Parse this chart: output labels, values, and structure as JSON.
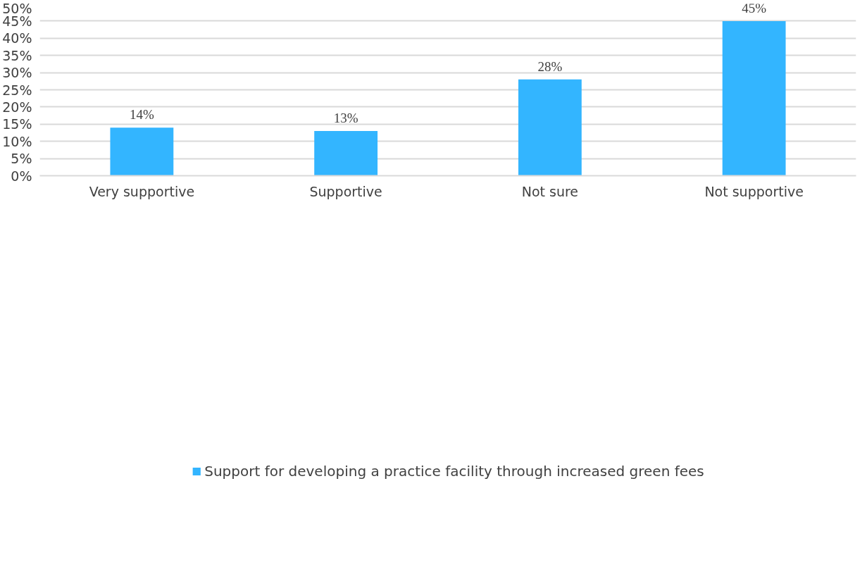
{
  "chart_data": {
    "type": "bar",
    "categories": [
      "Very supportive",
      "Supportive",
      "Not sure",
      "Not supportive"
    ],
    "series": [
      {
        "name": "Support for developing a practice facility through increased green fees",
        "color": "#33b5ff",
        "values": [
          14,
          13,
          28,
          45
        ]
      }
    ],
    "ylim": [
      0,
      50
    ],
    "yticks": [
      {
        "value": 0,
        "label": "0%"
      },
      {
        "value": 5,
        "label": "5%"
      },
      {
        "value": 10,
        "label": "10%"
      },
      {
        "value": 15,
        "label": "15%"
      },
      {
        "value": 20,
        "label": "20%"
      },
      {
        "value": 25,
        "label": "25%"
      },
      {
        "value": 30,
        "label": "30%"
      },
      {
        "value": 35,
        "label": "35%"
      },
      {
        "value": 40,
        "label": "40%"
      },
      {
        "value": 45,
        "label": "45%"
      },
      {
        "value": 50,
        "label": "50%"
      }
    ],
    "value_labels": [
      "14%",
      "13%",
      "28%",
      "45%"
    ],
    "grid": "y",
    "legend": "bottom"
  }
}
